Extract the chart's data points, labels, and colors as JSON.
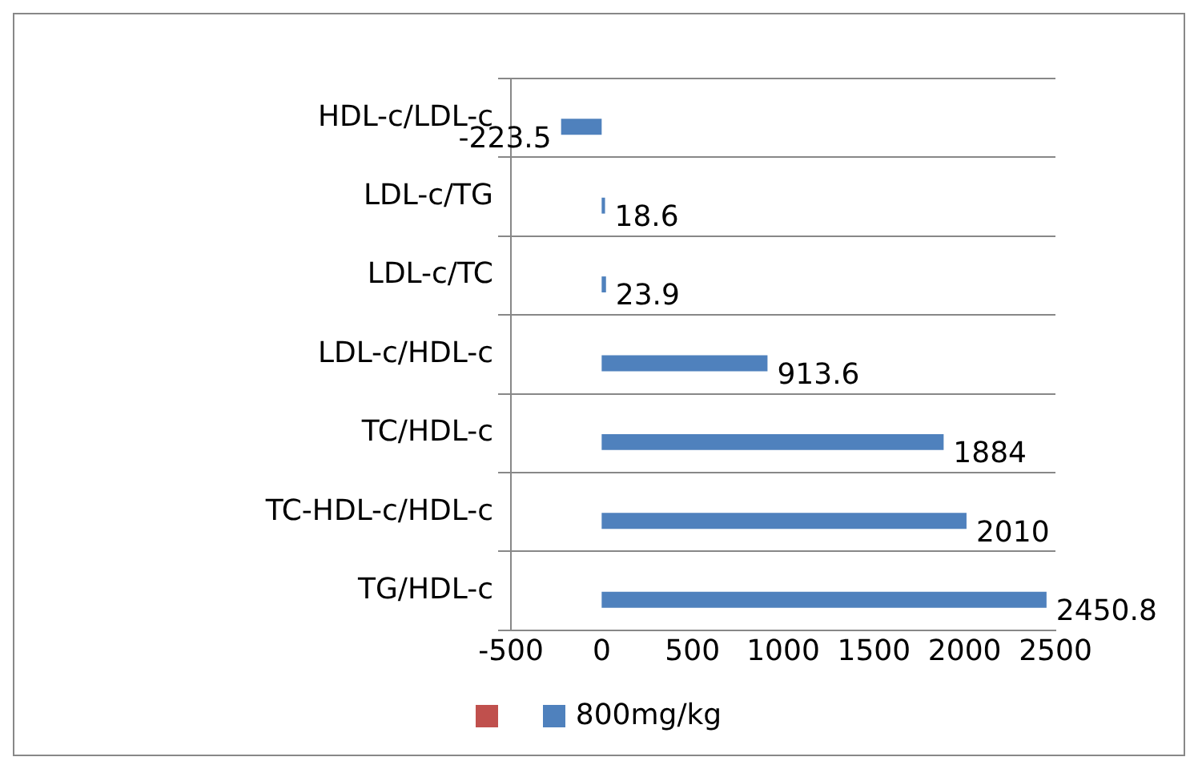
{
  "chart_data": {
    "type": "bar",
    "orientation": "horizontal",
    "categories": [
      "HDL-c/LDL-c",
      "LDL-c/TG",
      "LDL-c/TC",
      "LDL-c/HDL-c",
      "TC/HDL-c",
      "TC-HDL-c/HDL-c",
      "TG/HDL-c"
    ],
    "series": [
      {
        "color": "#c0504d",
        "values": [
          null,
          null,
          null,
          null,
          null,
          null,
          null
        ]
      },
      {
        "name": "800mg/kg",
        "color": "#4f81bd",
        "values": [
          -223.5,
          18.6,
          23.9,
          913.6,
          1884,
          2010,
          2450.8
        ]
      }
    ],
    "xlim": [
      -500,
      2500
    ],
    "xticks": [
      -500,
      0,
      500,
      1000,
      1500,
      2000,
      2500
    ],
    "grid": "y",
    "legend": "bottom",
    "data_labels": true
  }
}
